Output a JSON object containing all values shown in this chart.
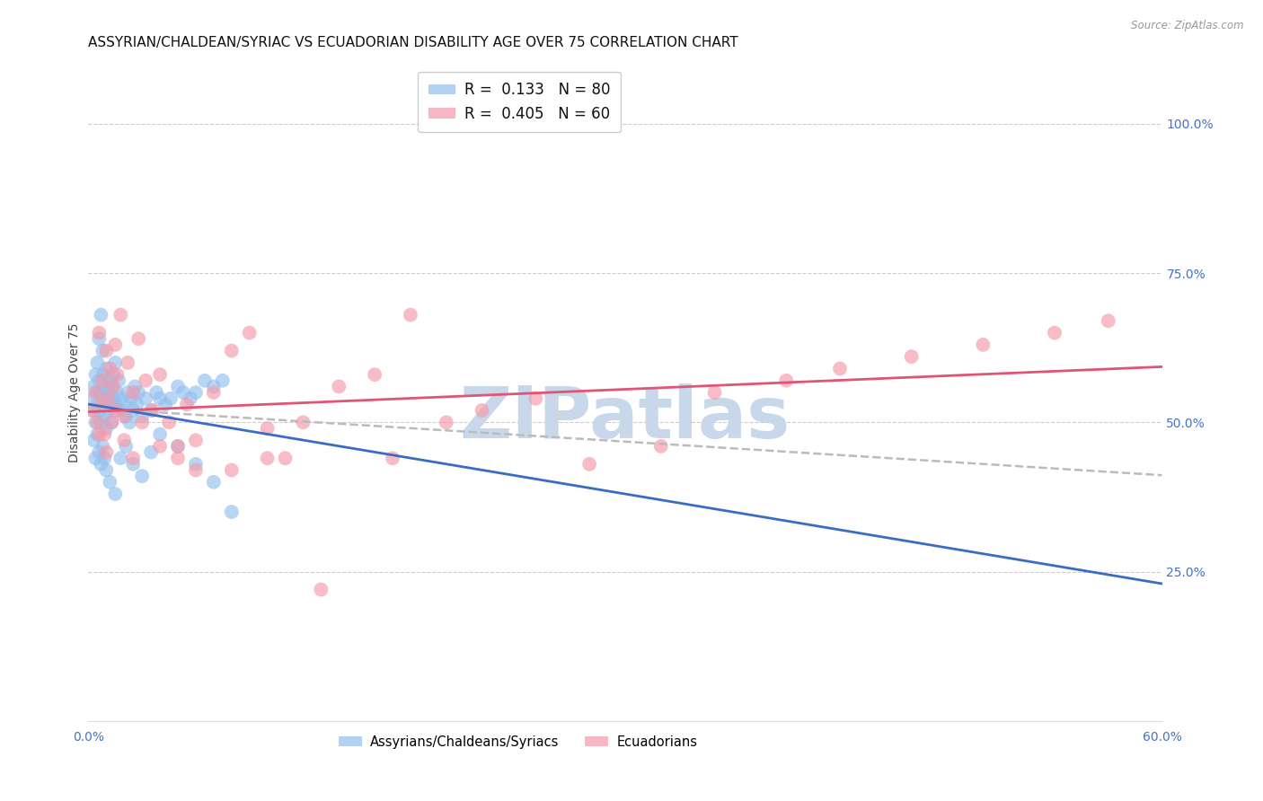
{
  "title": "ASSYRIAN/CHALDEAN/SYRIAC VS ECUADORIAN DISABILITY AGE OVER 75 CORRELATION CHART",
  "source": "Source: ZipAtlas.com",
  "ylabel": "Disability Age Over 75",
  "xlim": [
    0.0,
    0.6
  ],
  "ylim": [
    0.0,
    1.1
  ],
  "xticks": [
    0.0,
    0.6
  ],
  "xticklabels": [
    "0.0%",
    "60.0%"
  ],
  "yticks_right": [
    0.25,
    0.5,
    0.75,
    1.0
  ],
  "ytick_labels_right": [
    "25.0%",
    "50.0%",
    "75.0%",
    "100.0%"
  ],
  "legend_label1": "Assyrians/Chaldeans/Syriacs",
  "legend_label2": "Ecuadorians",
  "blue_color": "#92C0ED",
  "pink_color": "#F599AA",
  "blue_line_color": "#3B6BC4",
  "pink_line_color": "#E05575",
  "dashed_line_color": "#BBBBBB",
  "title_fontsize": 11,
  "axis_label_fontsize": 10,
  "tick_fontsize": 10,
  "legend_fontsize": 12,
  "watermark_text": "ZIPatlas",
  "watermark_color": "#C8D8EA",
  "background_color": "#FFFFFF",
  "blue_x": [
    0.002,
    0.003,
    0.003,
    0.004,
    0.004,
    0.005,
    0.005,
    0.005,
    0.006,
    0.006,
    0.006,
    0.007,
    0.007,
    0.007,
    0.008,
    0.008,
    0.008,
    0.009,
    0.009,
    0.01,
    0.01,
    0.01,
    0.011,
    0.011,
    0.012,
    0.012,
    0.013,
    0.013,
    0.014,
    0.014,
    0.015,
    0.015,
    0.016,
    0.016,
    0.017,
    0.018,
    0.019,
    0.02,
    0.021,
    0.022,
    0.023,
    0.024,
    0.025,
    0.026,
    0.027,
    0.028,
    0.03,
    0.032,
    0.035,
    0.038,
    0.04,
    0.043,
    0.046,
    0.05,
    0.053,
    0.057,
    0.06,
    0.065,
    0.07,
    0.075,
    0.003,
    0.004,
    0.005,
    0.006,
    0.007,
    0.008,
    0.009,
    0.01,
    0.012,
    0.015,
    0.018,
    0.021,
    0.025,
    0.03,
    0.035,
    0.04,
    0.05,
    0.06,
    0.07,
    0.08
  ],
  "blue_y": [
    0.54,
    0.56,
    0.52,
    0.58,
    0.5,
    0.55,
    0.53,
    0.6,
    0.57,
    0.52,
    0.64,
    0.55,
    0.5,
    0.68,
    0.53,
    0.58,
    0.62,
    0.56,
    0.51,
    0.54,
    0.59,
    0.49,
    0.55,
    0.52,
    0.57,
    0.53,
    0.56,
    0.5,
    0.54,
    0.58,
    0.53,
    0.6,
    0.52,
    0.55,
    0.57,
    0.54,
    0.52,
    0.53,
    0.51,
    0.55,
    0.5,
    0.54,
    0.52,
    0.56,
    0.53,
    0.55,
    0.51,
    0.54,
    0.52,
    0.55,
    0.54,
    0.53,
    0.54,
    0.56,
    0.55,
    0.54,
    0.55,
    0.57,
    0.56,
    0.57,
    0.47,
    0.44,
    0.48,
    0.45,
    0.43,
    0.46,
    0.44,
    0.42,
    0.4,
    0.38,
    0.44,
    0.46,
    0.43,
    0.41,
    0.45,
    0.48,
    0.46,
    0.43,
    0.4,
    0.35
  ],
  "pink_x": [
    0.002,
    0.004,
    0.005,
    0.006,
    0.007,
    0.008,
    0.009,
    0.01,
    0.011,
    0.012,
    0.013,
    0.014,
    0.015,
    0.016,
    0.018,
    0.02,
    0.022,
    0.025,
    0.028,
    0.032,
    0.036,
    0.04,
    0.045,
    0.05,
    0.055,
    0.06,
    0.07,
    0.08,
    0.09,
    0.1,
    0.11,
    0.12,
    0.14,
    0.16,
    0.18,
    0.2,
    0.22,
    0.25,
    0.28,
    0.32,
    0.35,
    0.39,
    0.42,
    0.46,
    0.5,
    0.54,
    0.57,
    0.006,
    0.01,
    0.015,
    0.02,
    0.025,
    0.03,
    0.04,
    0.05,
    0.06,
    0.08,
    0.1,
    0.13,
    0.17
  ],
  "pink_y": [
    0.52,
    0.55,
    0.5,
    0.65,
    0.53,
    0.57,
    0.48,
    0.62,
    0.54,
    0.59,
    0.5,
    0.56,
    0.63,
    0.58,
    0.68,
    0.51,
    0.6,
    0.55,
    0.64,
    0.57,
    0.52,
    0.58,
    0.5,
    0.46,
    0.53,
    0.47,
    0.55,
    0.62,
    0.65,
    0.49,
    0.44,
    0.5,
    0.56,
    0.58,
    0.68,
    0.5,
    0.52,
    0.54,
    0.43,
    0.46,
    0.55,
    0.57,
    0.59,
    0.61,
    0.63,
    0.65,
    0.67,
    0.48,
    0.45,
    0.52,
    0.47,
    0.44,
    0.5,
    0.46,
    0.44,
    0.42,
    0.42,
    0.44,
    0.22,
    0.44
  ]
}
